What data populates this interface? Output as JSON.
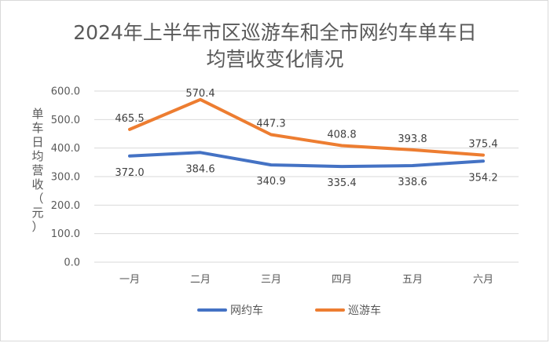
{
  "chart_data": {
    "type": "line",
    "title_line1": "2024年上半年市区巡游车和全市网约车单车日",
    "title_line2": "均营收变化情况",
    "ylabel_chars": [
      "单",
      "车",
      "日",
      "均",
      "营",
      "收",
      "（",
      "元",
      "）"
    ],
    "categories": [
      "一月",
      "二月",
      "三月",
      "四月",
      "五月",
      "六月"
    ],
    "ylim": [
      0,
      600
    ],
    "yticks": [
      "0.0",
      "100.0",
      "200.0",
      "300.0",
      "400.0",
      "500.0",
      "600.0"
    ],
    "grid": true,
    "legend_position": "bottom",
    "series": [
      {
        "name": "网约车",
        "color": "#4472C4",
        "values": [
          372.0,
          384.6,
          340.9,
          335.4,
          338.6,
          354.2
        ],
        "labels": [
          "372.0",
          "384.6",
          "340.9",
          "335.4",
          "338.6",
          "354.2"
        ]
      },
      {
        "name": "巡游车",
        "color": "#ED7D31",
        "values": [
          465.5,
          570.4,
          447.3,
          408.8,
          393.8,
          375.4
        ],
        "labels": [
          "465.5",
          "570.4",
          "447.3",
          "408.8",
          "393.8",
          "375.4"
        ]
      }
    ]
  }
}
